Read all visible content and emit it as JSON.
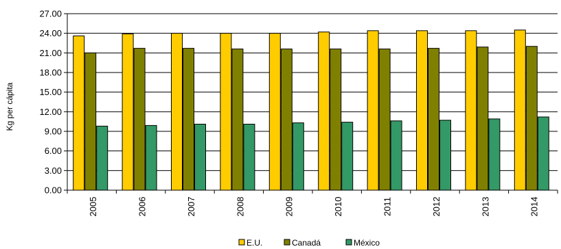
{
  "chart_data": {
    "type": "bar",
    "title": "",
    "xlabel": "",
    "ylabel": "Kg per cápita",
    "ylim": [
      0,
      27
    ],
    "yticks": [
      "0.00",
      "3.00",
      "6.00",
      "9.00",
      "12.00",
      "15.00",
      "18.00",
      "21.00",
      "24.00",
      "27.00"
    ],
    "categories": [
      "2005",
      "2006",
      "2007",
      "2008",
      "2009",
      "2010",
      "2011",
      "2012",
      "2013",
      "2014"
    ],
    "series": [
      {
        "name": "E.U.",
        "color": "#FFCC00",
        "values": [
          23.6,
          23.9,
          24.0,
          24.0,
          24.0,
          24.2,
          24.4,
          24.4,
          24.4,
          24.5
        ]
      },
      {
        "name": "Canadá",
        "color": "#808000",
        "values": [
          21.0,
          21.7,
          21.7,
          21.6,
          21.6,
          21.6,
          21.6,
          21.7,
          21.9,
          22.0
        ]
      },
      {
        "name": "México",
        "color": "#339966",
        "values": [
          9.8,
          9.9,
          10.1,
          10.1,
          10.3,
          10.4,
          10.6,
          10.7,
          10.9,
          11.2
        ]
      }
    ],
    "grid": true,
    "legend": "bottom-center"
  }
}
